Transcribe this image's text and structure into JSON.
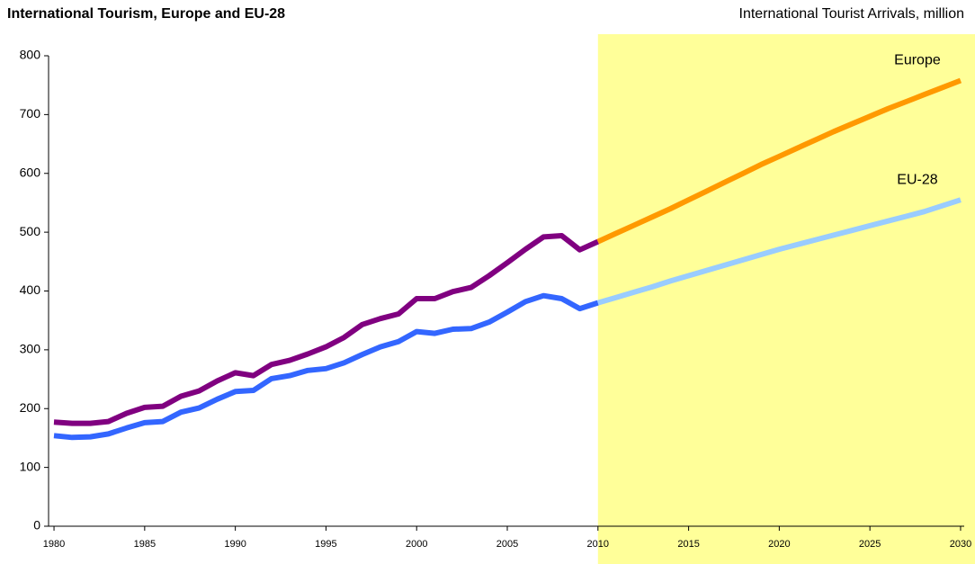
{
  "chart_data": {
    "type": "line",
    "title": "International Tourism, Europe and EU-28",
    "subtitle": "International Tourist Arrivals, million",
    "x": [
      1980,
      1981,
      1982,
      1983,
      1984,
      1985,
      1986,
      1987,
      1988,
      1989,
      1990,
      1991,
      1992,
      1993,
      1994,
      1995,
      1996,
      1997,
      1998,
      1999,
      2000,
      2001,
      2002,
      2003,
      2004,
      2005,
      2006,
      2007,
      2008,
      2009,
      2010,
      2011,
      2012,
      2013,
      2014,
      2015,
      2016,
      2017,
      2018,
      2019,
      2020,
      2021,
      2022,
      2023,
      2024,
      2025,
      2026,
      2027,
      2028,
      2029,
      2030
    ],
    "series": [
      {
        "name": "Europe",
        "color": "#800080",
        "forecast_color": "#ff9900",
        "values": [
          177,
          175,
          175,
          178,
          192,
          202,
          204,
          221,
          230,
          247,
          261,
          256,
          275,
          282,
          293,
          305,
          321,
          343,
          353,
          361,
          387,
          387,
          399,
          406,
          426,
          448,
          471,
          492,
          494,
          470,
          484,
          498,
          512,
          526,
          540,
          555,
          570,
          585,
          600,
          615,
          629,
          643,
          657,
          671,
          684,
          697,
          710,
          722,
          734,
          746,
          758
        ]
      },
      {
        "name": "EU-28",
        "color": "#3366ff",
        "forecast_color": "#99ccff",
        "values": [
          154,
          151,
          152,
          157,
          167,
          176,
          178,
          194,
          201,
          216,
          229,
          231,
          251,
          256,
          265,
          268,
          278,
          292,
          305,
          314,
          331,
          328,
          335,
          336,
          347,
          364,
          382,
          392,
          387,
          370,
          380,
          389,
          398,
          407,
          417,
          426,
          435,
          444,
          453,
          462,
          471,
          479,
          487,
          495,
          503,
          511,
          519,
          527,
          535,
          545,
          555
        ]
      }
    ],
    "forecast_span": [
      2010,
      2030
    ],
    "forecast_fill": "#ffff99",
    "xlim": [
      1979.7,
      2030.2
    ],
    "xticks": [
      1980,
      1985,
      1990,
      1995,
      2000,
      2005,
      2010,
      2015,
      2020,
      2025,
      2030
    ],
    "ylim": [
      0,
      800
    ],
    "yticks": [
      0,
      100,
      200,
      300,
      400,
      500,
      600,
      700,
      800
    ]
  }
}
